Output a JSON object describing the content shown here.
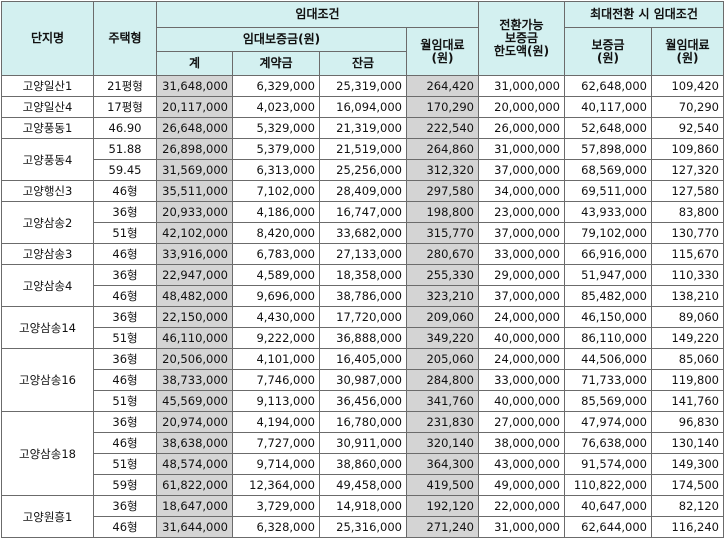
{
  "header": {
    "complex": "단지명",
    "type": "주택형",
    "rent_conditions": "임대조건",
    "deposit": "임대보증금(원)",
    "deposit_total": "계",
    "deposit_contract": "계약금",
    "deposit_balance": "잔금",
    "monthly_rent": "월임대료\n(원)",
    "conversion_limit": "전환가능\n보증금\n한도액(원)",
    "max_conversion": "최대전환 시 임대조건",
    "max_deposit": "보증금\n(원)",
    "max_monthly": "월임대료\n(원)"
  },
  "groups": [
    {
      "complex": "고양일산1",
      "rows": [
        {
          "type": "21평형",
          "total": "31,648,000",
          "contract": "6,329,000",
          "balance": "25,319,000",
          "monthly": "264,420",
          "limit": "31,000,000",
          "max_deposit": "62,648,000",
          "max_monthly": "109,420"
        }
      ]
    },
    {
      "complex": "고양일산4",
      "rows": [
        {
          "type": "17평형",
          "total": "20,117,000",
          "contract": "4,023,000",
          "balance": "16,094,000",
          "monthly": "170,290",
          "limit": "20,000,000",
          "max_deposit": "40,117,000",
          "max_monthly": "70,290"
        }
      ]
    },
    {
      "complex": "고양풍동1",
      "rows": [
        {
          "type": "46.90",
          "total": "26,648,000",
          "contract": "5,329,000",
          "balance": "21,319,000",
          "monthly": "222,540",
          "limit": "26,000,000",
          "max_deposit": "52,648,000",
          "max_monthly": "92,540"
        }
      ]
    },
    {
      "complex": "고양풍동4",
      "rows": [
        {
          "type": "51.88",
          "total": "26,898,000",
          "contract": "5,379,000",
          "balance": "21,519,000",
          "monthly": "264,860",
          "limit": "31,000,000",
          "max_deposit": "57,898,000",
          "max_monthly": "109,860"
        },
        {
          "type": "59.45",
          "total": "31,569,000",
          "contract": "6,313,000",
          "balance": "25,256,000",
          "monthly": "312,320",
          "limit": "37,000,000",
          "max_deposit": "68,569,000",
          "max_monthly": "127,320"
        }
      ]
    },
    {
      "complex": "고양행신3",
      "rows": [
        {
          "type": "46형",
          "total": "35,511,000",
          "contract": "7,102,000",
          "balance": "28,409,000",
          "monthly": "297,580",
          "limit": "34,000,000",
          "max_deposit": "69,511,000",
          "max_monthly": "127,580"
        }
      ]
    },
    {
      "complex": "고양삼송2",
      "rows": [
        {
          "type": "36형",
          "total": "20,933,000",
          "contract": "4,186,000",
          "balance": "16,747,000",
          "monthly": "198,800",
          "limit": "23,000,000",
          "max_deposit": "43,933,000",
          "max_monthly": "83,800"
        },
        {
          "type": "51형",
          "total": "42,102,000",
          "contract": "8,420,000",
          "balance": "33,682,000",
          "monthly": "315,770",
          "limit": "37,000,000",
          "max_deposit": "79,102,000",
          "max_monthly": "130,770"
        }
      ]
    },
    {
      "complex": "고양삼송3",
      "rows": [
        {
          "type": "46형",
          "total": "33,916,000",
          "contract": "6,783,000",
          "balance": "27,133,000",
          "monthly": "280,670",
          "limit": "33,000,000",
          "max_deposit": "66,916,000",
          "max_monthly": "115,670"
        }
      ]
    },
    {
      "complex": "고양삼송4",
      "rows": [
        {
          "type": "36형",
          "total": "22,947,000",
          "contract": "4,589,000",
          "balance": "18,358,000",
          "monthly": "255,330",
          "limit": "29,000,000",
          "max_deposit": "51,947,000",
          "max_monthly": "110,330"
        },
        {
          "type": "46형",
          "total": "48,482,000",
          "contract": "9,696,000",
          "balance": "38,786,000",
          "monthly": "323,210",
          "limit": "37,000,000",
          "max_deposit": "85,482,000",
          "max_monthly": "138,210"
        }
      ]
    },
    {
      "complex": "고양삼송14",
      "rows": [
        {
          "type": "36형",
          "total": "22,150,000",
          "contract": "4,430,000",
          "balance": "17,720,000",
          "monthly": "209,060",
          "limit": "24,000,000",
          "max_deposit": "46,150,000",
          "max_monthly": "89,060"
        },
        {
          "type": "51형",
          "total": "46,110,000",
          "contract": "9,222,000",
          "balance": "36,888,000",
          "monthly": "349,220",
          "limit": "40,000,000",
          "max_deposit": "86,110,000",
          "max_monthly": "149,220"
        }
      ]
    },
    {
      "complex": "고양삼송16",
      "rows": [
        {
          "type": "36형",
          "total": "20,506,000",
          "contract": "4,101,000",
          "balance": "16,405,000",
          "monthly": "205,060",
          "limit": "24,000,000",
          "max_deposit": "44,506,000",
          "max_monthly": "85,060"
        },
        {
          "type": "46형",
          "total": "38,733,000",
          "contract": "7,746,000",
          "balance": "30,987,000",
          "monthly": "284,800",
          "limit": "33,000,000",
          "max_deposit": "71,733,000",
          "max_monthly": "119,800"
        },
        {
          "type": "51형",
          "total": "45,569,000",
          "contract": "9,113,000",
          "balance": "36,456,000",
          "monthly": "341,760",
          "limit": "40,000,000",
          "max_deposit": "85,569,000",
          "max_monthly": "141,760"
        }
      ]
    },
    {
      "complex": "고양삼송18",
      "rows": [
        {
          "type": "36형",
          "total": "20,974,000",
          "contract": "4,194,000",
          "balance": "16,780,000",
          "monthly": "231,830",
          "limit": "27,000,000",
          "max_deposit": "47,974,000",
          "max_monthly": "96,830"
        },
        {
          "type": "46형",
          "total": "38,638,000",
          "contract": "7,727,000",
          "balance": "30,911,000",
          "monthly": "320,140",
          "limit": "38,000,000",
          "max_deposit": "76,638,000",
          "max_monthly": "130,140"
        },
        {
          "type": "51형",
          "total": "48,574,000",
          "contract": "9,714,000",
          "balance": "38,860,000",
          "monthly": "364,300",
          "limit": "43,000,000",
          "max_deposit": "91,574,000",
          "max_monthly": "149,300"
        },
        {
          "type": "59형",
          "total": "61,822,000",
          "contract": "12,364,000",
          "balance": "49,458,000",
          "monthly": "419,500",
          "limit": "49,000,000",
          "max_deposit": "110,822,000",
          "max_monthly": "174,500"
        }
      ]
    },
    {
      "complex": "고양원흥1",
      "rows": [
        {
          "type": "36형",
          "total": "18,647,000",
          "contract": "3,729,000",
          "balance": "14,918,000",
          "monthly": "192,120",
          "limit": "22,000,000",
          "max_deposit": "40,647,000",
          "max_monthly": "82,120"
        },
        {
          "type": "46형",
          "total": "31,644,000",
          "contract": "6,328,000",
          "balance": "25,316,000",
          "monthly": "271,240",
          "limit": "31,000,000",
          "max_deposit": "62,644,000",
          "max_monthly": "116,240"
        }
      ]
    }
  ]
}
